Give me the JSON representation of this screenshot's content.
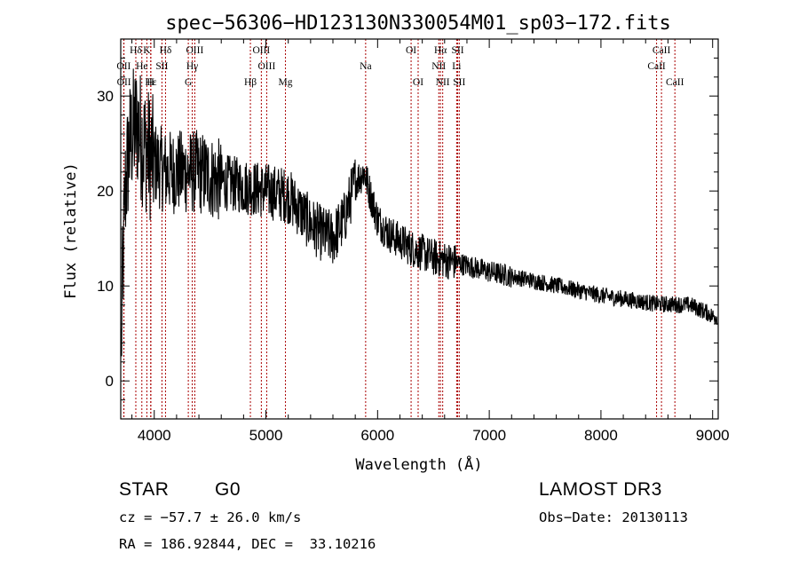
{
  "chart_data": {
    "type": "line",
    "title": "spec−56306−HD123130N330054M01_sp03−172.fits",
    "xlabel": "Wavelength (Å)",
    "ylabel": "Flux (relative)",
    "xlim": [
      3700,
      9050
    ],
    "ylim": [
      -4,
      36
    ],
    "xticks": [
      4000,
      5000,
      6000,
      7000,
      8000,
      9000
    ],
    "yticks": [
      0,
      10,
      20,
      30
    ],
    "line_color": "#000000",
    "marker_color": "#aa0000",
    "spectrum_anchors": [
      [
        3700,
        0
      ],
      [
        3715,
        10
      ],
      [
        3740,
        20
      ],
      [
        3770,
        24
      ],
      [
        3800,
        26
      ],
      [
        3850,
        27
      ],
      [
        3900,
        25
      ],
      [
        4000,
        23
      ],
      [
        4100,
        22
      ],
      [
        4200,
        22
      ],
      [
        4400,
        22
      ],
      [
        4600,
        21
      ],
      [
        4800,
        20.5
      ],
      [
        5000,
        20
      ],
      [
        5200,
        19.5
      ],
      [
        5300,
        18
      ],
      [
        5400,
        16.5
      ],
      [
        5500,
        15.5
      ],
      [
        5600,
        15
      ],
      [
        5700,
        17
      ],
      [
        5800,
        21
      ],
      [
        5880,
        22
      ],
      [
        5950,
        19
      ],
      [
        6000,
        17
      ],
      [
        6100,
        15.5
      ],
      [
        6300,
        14
      ],
      [
        6500,
        13
      ],
      [
        6700,
        12.5
      ],
      [
        7000,
        11.5
      ],
      [
        7500,
        10.3
      ],
      [
        8000,
        9
      ],
      [
        8500,
        8.1
      ],
      [
        8800,
        8
      ],
      [
        8950,
        7.2
      ],
      [
        9000,
        6.8
      ]
    ],
    "lines": [
      {
        "label": "Hδ",
        "x": 3835,
        "row": 0
      },
      {
        "label": "K",
        "x": 3934,
        "row": 0
      },
      {
        "label": "Hδ",
        "x": 4101,
        "row": 0
      },
      {
        "label": "OIII",
        "x": 4363,
        "row": 0
      },
      {
        "label": "OIII",
        "x": 4959,
        "row": 0
      },
      {
        "label": "OI",
        "x": 6300,
        "row": 0
      },
      {
        "label": "Hα",
        "x": 6563,
        "row": 0
      },
      {
        "label": "SII",
        "x": 6717,
        "row": 0
      },
      {
        "label": "CaII",
        "x": 8542,
        "row": 0
      },
      {
        "label": "OII",
        "x": 3727,
        "row": 1
      },
      {
        "label": "He",
        "x": 3889,
        "row": 1
      },
      {
        "label": "SII",
        "x": 4069,
        "row": 1
      },
      {
        "label": "Hγ",
        "x": 4340,
        "row": 1
      },
      {
        "label": "OIII",
        "x": 5007,
        "row": 1
      },
      {
        "label": "Na",
        "x": 5893,
        "row": 1
      },
      {
        "label": "NII",
        "x": 6548,
        "row": 1
      },
      {
        "label": "Li",
        "x": 6708,
        "row": 1
      },
      {
        "label": "CaII",
        "x": 8498,
        "row": 1
      },
      {
        "label": "OII",
        "x": 3729,
        "row": 2
      },
      {
        "label": "Hε",
        "x": 3970,
        "row": 2
      },
      {
        "label": "H",
        "x": 3968,
        "row": 2
      },
      {
        "label": "G",
        "x": 4305,
        "row": 2
      },
      {
        "label": "Hβ",
        "x": 4861,
        "row": 2
      },
      {
        "label": "Mg",
        "x": 5175,
        "row": 2
      },
      {
        "label": "OI",
        "x": 6363,
        "row": 2
      },
      {
        "label": "NII",
        "x": 6583,
        "row": 2
      },
      {
        "label": "SII",
        "x": 6731,
        "row": 2
      },
      {
        "label": "CaII",
        "x": 8662,
        "row": 2
      }
    ]
  },
  "info": {
    "class_label": "STAR",
    "subclass": "G0",
    "survey": "LAMOST DR3",
    "cz": "cz = −57.7 ± 26.0 km/s",
    "obs_date": "Obs−Date: 20130113",
    "coords": "RA = 186.92844, DEC =  33.10216"
  }
}
